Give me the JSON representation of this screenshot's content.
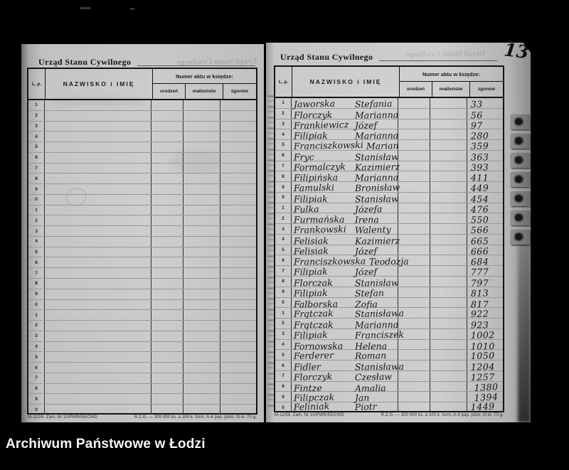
{
  "caption": "Archiwum Państwowe w Łodzi",
  "page_number_annotation": "13",
  "form": {
    "title": "Urząd Stanu Cywilnego",
    "col_lp": "L. p.",
    "col_name": "NAZWISKO i IMIĘ",
    "col_group": "Numer aktu w księdze:",
    "col_births": "urodzeń",
    "col_marriages": "małżeństw",
    "col_deaths": "zgonów",
    "footer_left": "M-11/59. Zam. Nr 10/PWR/55/CWD",
    "footer_right": "R.Z.G. — 300 000 ks. a 100 k. form. A-4 pap. piśm. III kl. 70 g."
  },
  "left_page": {
    "rows": [
      {
        "lp": "1"
      },
      {
        "lp": "2"
      },
      {
        "lp": "3"
      },
      {
        "lp": "4"
      },
      {
        "lp": "5"
      },
      {
        "lp": "6"
      },
      {
        "lp": "7"
      },
      {
        "lp": "8"
      },
      {
        "lp": "9"
      },
      {
        "lp": "0"
      },
      {
        "lp": "1"
      },
      {
        "lp": "2"
      },
      {
        "lp": "3"
      },
      {
        "lp": "4"
      },
      {
        "lp": "5"
      },
      {
        "lp": "6"
      },
      {
        "lp": "7"
      },
      {
        "lp": "8"
      },
      {
        "lp": "9"
      },
      {
        "lp": "0"
      },
      {
        "lp": "1"
      },
      {
        "lp": "2"
      },
      {
        "lp": "3"
      },
      {
        "lp": "4"
      },
      {
        "lp": "5"
      },
      {
        "lp": "6"
      },
      {
        "lp": "7"
      },
      {
        "lp": "8"
      },
      {
        "lp": "9"
      },
      {
        "lp": "0"
      }
    ]
  },
  "right_page": {
    "rows": [
      {
        "lp": "1",
        "surname": "Jaworska",
        "given": "Stefania",
        "deaths": "33"
      },
      {
        "lp": "2",
        "surname": "Florczyk",
        "given": "Marianna",
        "deaths": "56"
      },
      {
        "lp": "3",
        "surname": "Frankiewicz",
        "given": "Józef",
        "deaths": "97"
      },
      {
        "lp": "4",
        "surname": "Filipiak",
        "given": "Marianna",
        "deaths": "280"
      },
      {
        "lp": "5",
        "surname": "Franciszkowski",
        "given": "Marian",
        "deaths": "359"
      },
      {
        "lp": "6",
        "surname": "Fryc",
        "given": "Stanisław",
        "deaths": "363"
      },
      {
        "lp": "7",
        "surname": "Formalczyk",
        "given": "Kazimierz",
        "deaths": "393"
      },
      {
        "lp": "8",
        "surname": "Filipińska",
        "given": "Marianna",
        "deaths": "411"
      },
      {
        "lp": "9",
        "surname": "Famulski",
        "given": "Bronisław",
        "deaths": "449"
      },
      {
        "lp": "0",
        "surname": "Filipiak",
        "given": "Stanisław",
        "deaths": "454"
      },
      {
        "lp": "1",
        "surname": "Fulka",
        "given": "Józefa",
        "deaths": "476"
      },
      {
        "lp": "2",
        "surname": "Furmańska",
        "given": "Irena",
        "deaths": "550"
      },
      {
        "lp": "3",
        "surname": "Frankowski",
        "given": "Walenty",
        "deaths": "566"
      },
      {
        "lp": "4",
        "surname": "Felisiak",
        "given": "Kazimierz",
        "deaths": "665"
      },
      {
        "lp": "5",
        "surname": "Felisiak",
        "given": "Józef",
        "deaths": "666"
      },
      {
        "lp": "6",
        "surname": "Franciszkowska",
        "given": "Teodozja",
        "deaths": "684"
      },
      {
        "lp": "7",
        "surname": "Filipiak",
        "given": "Józef",
        "deaths": "777"
      },
      {
        "lp": "8",
        "surname": "Florczak",
        "given": "Stanisław",
        "deaths": "797"
      },
      {
        "lp": "9",
        "surname": "Filipiak",
        "given": "Stefan",
        "deaths": "813"
      },
      {
        "lp": "0",
        "surname": "Falborska",
        "given": "Zofia",
        "deaths": "817"
      },
      {
        "lp": "1",
        "surname": "Frątczak",
        "given": "Stanisława",
        "deaths": "922"
      },
      {
        "lp": "2",
        "surname": "Frątczak",
        "given": "Marianna",
        "deaths": "923"
      },
      {
        "lp": "3",
        "surname": "Filipiak",
        "given": "Franciszek",
        "deaths": "1002"
      },
      {
        "lp": "4",
        "surname": "Fornowska",
        "given": "Helena",
        "deaths": "1010"
      },
      {
        "lp": "5",
        "surname": "Ferderer",
        "given": "Roman",
        "deaths": "1050"
      },
      {
        "lp": "6",
        "surname": "Fidler",
        "given": "Stanisława",
        "deaths": "1204"
      },
      {
        "lp": "7",
        "surname": "Florczyk",
        "given": "Czesław",
        "deaths": "1257"
      },
      {
        "lp": "8",
        "surname": "Fintze",
        "given": "Amalia",
        "deaths": "1380"
      },
      {
        "lp": "9",
        "surname": "Filipczak",
        "given": "Jan",
        "deaths": "1394"
      },
      {
        "lp": "0",
        "surname": "Feliniak",
        "given": "Piotr",
        "deaths": "1449"
      }
    ]
  }
}
